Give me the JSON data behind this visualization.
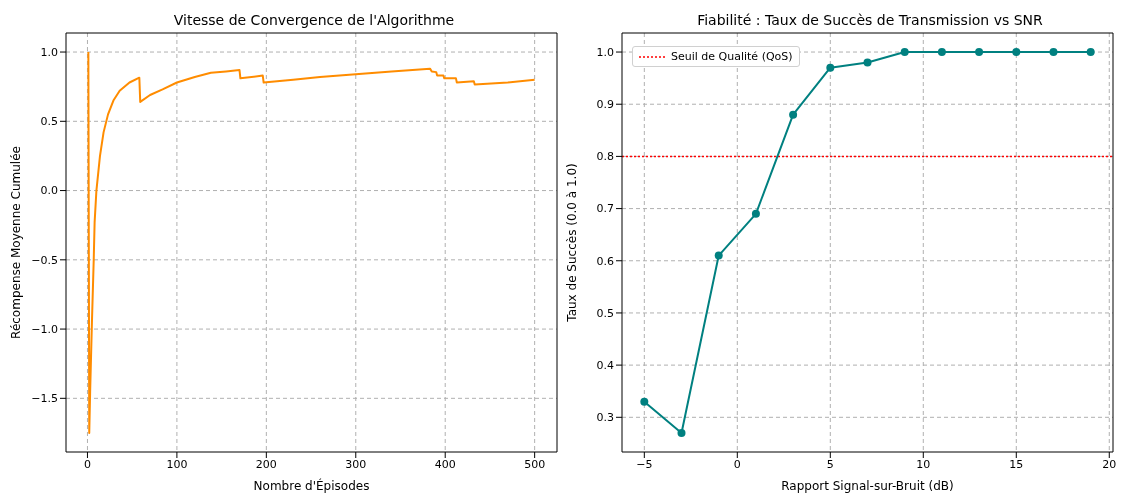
{
  "chart_data": [
    {
      "type": "line",
      "title": "Vitesse de Convergence de l'Algorithme",
      "xlabel": "Nombre d'Épisodes",
      "ylabel": "Récompense Moyenne Cumulée",
      "x": [
        1,
        2,
        3,
        5,
        7,
        8,
        10,
        14,
        18,
        23,
        29,
        36,
        47,
        58,
        59,
        70,
        84,
        100,
        120,
        138,
        155,
        170,
        171,
        196,
        197,
        230,
        260,
        300,
        340,
        383,
        385,
        390,
        391,
        398,
        399,
        412,
        413,
        432,
        433,
        470,
        500
      ],
      "series": [
        {
          "color": "#ff8c00",
          "values": [
            1.0,
            -1.75,
            -1.45,
            -0.95,
            -0.5,
            -0.23,
            0.0,
            0.25,
            0.42,
            0.55,
            0.65,
            0.72,
            0.78,
            0.815,
            0.64,
            0.69,
            0.73,
            0.78,
            0.82,
            0.85,
            0.86,
            0.87,
            0.81,
            0.83,
            0.78,
            0.8,
            0.82,
            0.84,
            0.86,
            0.88,
            0.86,
            0.855,
            0.83,
            0.83,
            0.81,
            0.81,
            0.78,
            0.79,
            0.765,
            0.78,
            0.8
          ]
        }
      ],
      "xlim": [
        -24,
        525
      ],
      "ylim": [
        -1.8875,
        1.1375
      ],
      "xticks": [
        0,
        100,
        200,
        300,
        400,
        500
      ],
      "yticks": [
        {
          "value": -1.5,
          "label": "−1.5"
        },
        {
          "value": -1,
          "label": "−1.0"
        },
        {
          "value": -0.5,
          "label": "−0.5"
        },
        {
          "value": 0,
          "label": "0.0"
        },
        {
          "value": 0.5,
          "label": "0.5"
        },
        {
          "value": 1,
          "label": "1.0"
        }
      ],
      "grid": true,
      "marker": "none",
      "line_style": "solid"
    },
    {
      "type": "line",
      "title": "Fiabilité : Taux de Succès de Transmission vs SNR",
      "xlabel": "Rapport Signal-sur-Bruit (dB)",
      "ylabel": "Taux de Succès (0.0 à 1.0)",
      "x": [
        -5,
        -3,
        -1,
        1,
        3,
        5,
        7,
        9,
        11,
        13,
        15,
        17,
        19
      ],
      "series": [
        {
          "color": "#008080",
          "values": [
            0.33,
            0.27,
            0.61,
            0.69,
            0.88,
            0.97,
            0.98,
            1.0,
            1.0,
            1.0,
            1.0,
            1.0,
            1.0
          ]
        }
      ],
      "xlim": [
        -6.2,
        20.2
      ],
      "ylim": [
        0.2335,
        1.0365
      ],
      "xticks": [
        {
          "value": -5,
          "label": "−5"
        },
        0,
        5,
        10,
        15,
        20
      ],
      "yticks": [
        {
          "value": 0.3,
          "label": "0.3"
        },
        {
          "value": 0.4,
          "label": "0.4"
        },
        {
          "value": 0.5,
          "label": "0.5"
        },
        {
          "value": 0.6,
          "label": "0.6"
        },
        {
          "value": 0.7,
          "label": "0.7"
        },
        {
          "value": 0.8,
          "label": "0.8"
        },
        {
          "value": 0.9,
          "label": "0.9"
        },
        {
          "value": 1,
          "label": "1.0"
        }
      ],
      "ref_lines": [
        {
          "axis": "y",
          "value": 0.8,
          "label": "Seuil de Qualité (QoS)",
          "color": "#ff0000",
          "line_style": "dotted"
        }
      ],
      "grid": true,
      "legend": "top left",
      "marker": "circle",
      "line_style": "solid"
    }
  ]
}
